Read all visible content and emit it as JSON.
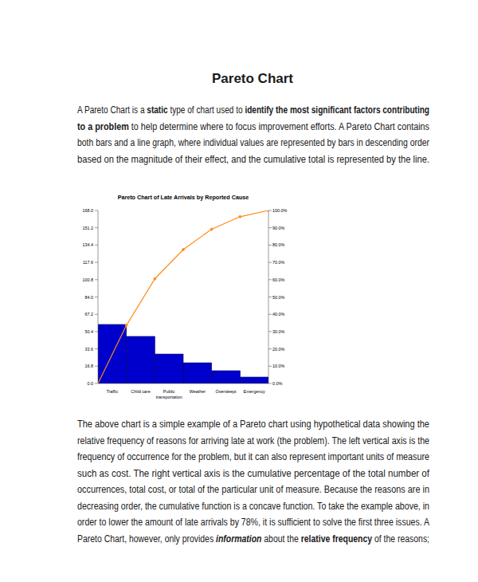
{
  "title": "Pareto Chart",
  "intro": {
    "lines": [
      [
        {
          "text": "A Pareto Chart is a ",
          "style": "normal"
        },
        {
          "text": "static",
          "style": "bold"
        },
        {
          "text": " type of chart used to ",
          "style": "normal"
        },
        {
          "text": "identify the most significant factors contributing",
          "style": "bold"
        }
      ],
      [
        {
          "text": "to a problem",
          "style": "bold"
        },
        {
          "text": " to help determine where to focus improvement efforts. A Pareto Chart contains",
          "style": "normal"
        }
      ],
      [
        {
          "text": "both bars and a line graph, where individual values are represented by bars in descending order",
          "style": "normal"
        }
      ],
      [
        {
          "text": "based on the magnitude of their effect, and the cumulative total is represented by the line.",
          "style": "normal"
        }
      ]
    ]
  },
  "chart_data": {
    "type": "bar",
    "title": "Pareto Chart of Late Arrivals by Reported Cause",
    "categories": [
      "Traffic",
      "Child care",
      "Public\ntransportation",
      "Weather",
      "Oversleept",
      "Emergency"
    ],
    "series": [
      {
        "type": "bar",
        "color": "#0000cc",
        "values": [
          57.3,
          45.7,
          28.6,
          20.1,
          12.4,
          6.2
        ]
      },
      {
        "type": "line",
        "axis": "y2",
        "color": "#ff8c1a",
        "marker": "diamond",
        "values": [
          33.6,
          60.5,
          77.4,
          89.2,
          96.4,
          100.0
        ]
      }
    ],
    "ylim": [
      0,
      168
    ],
    "yticks": [
      {
        "value": 0,
        "label": "0.0"
      },
      16.8,
      33.6,
      50.4,
      67.2,
      {
        "value": 84,
        "label": "84.0"
      },
      100.8,
      117.6,
      134.4,
      151.2,
      {
        "value": 168,
        "label": "168.0"
      }
    ],
    "y2lim": [
      0,
      100
    ],
    "y2ticks": [
      {
        "value": 0,
        "label": "0.0%"
      },
      {
        "value": 10,
        "label": "10.0%"
      },
      {
        "value": 20,
        "label": "20.0%"
      },
      {
        "value": 30,
        "label": "30.0%"
      },
      {
        "value": 40,
        "label": "40.0%"
      },
      {
        "value": 50,
        "label": "50.0%"
      },
      {
        "value": 60,
        "label": "60.0%"
      },
      {
        "value": 70,
        "label": "70.0%"
      },
      {
        "value": 80,
        "label": "80.0%"
      },
      {
        "value": 90,
        "label": "90.0%"
      },
      {
        "value": 100,
        "label": "100.0%"
      }
    ],
    "grid": false
  },
  "body": {
    "lines": [
      [
        {
          "text": "The above chart is a simple example of a Pareto chart using hypothetical data showing the",
          "style": "normal"
        }
      ],
      [
        {
          "text": "relative frequency of reasons for arriving late at work (the problem). The left vertical axis is the",
          "style": "normal"
        }
      ],
      [
        {
          "text": "frequency of occurrence for the problem, but it can also represent important units of measure",
          "style": "normal"
        }
      ],
      [
        {
          "text": "such as cost. The right vertical axis is the cumulative percentage of the total number of",
          "style": "normal"
        }
      ],
      [
        {
          "text": "occurrences, total cost, or total of the particular unit of measure. Because the reasons are in",
          "style": "normal"
        }
      ],
      [
        {
          "text": "decreasing order, the cumulative function is a concave function. To take the example above, in",
          "style": "normal"
        }
      ],
      [
        {
          "text": "order to lower the amount of late arrivals by 78%, it is sufficient to solve the first three issues. A",
          "style": "normal"
        }
      ],
      [
        {
          "text": "Pareto Chart, however, only provides ",
          "style": "normal"
        },
        {
          "text": "information",
          "style": "bold-italic"
        },
        {
          "text": " about the ",
          "style": "normal"
        },
        {
          "text": "relative frequency",
          "style": "bold"
        },
        {
          "text": " of the reasons;",
          "style": "normal"
        }
      ]
    ]
  }
}
